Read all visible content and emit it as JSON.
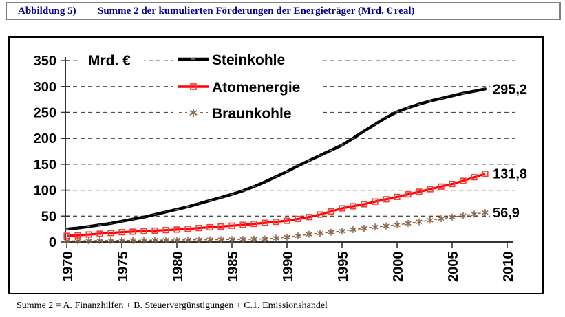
{
  "header": {
    "label": "Abbildung 5)",
    "title": "Summe 2 der kumulierten Förderungen der Energieträger (Mrd. € real)"
  },
  "footnote": {
    "text": "Summe 2 = A. Finanzhilfen + B. Steuervergünstigungen + C.1. Emissionshandel"
  },
  "chart_data": {
    "type": "line",
    "title": "Summe 2 der kumulierten Förderungen der Energieträger (Mrd. € real)",
    "unit_label": "Mrd. €",
    "ylim": [
      0,
      350
    ],
    "ytick_step": 50,
    "yticks": [
      0,
      50,
      100,
      150,
      200,
      250,
      300,
      350
    ],
    "xticks": [
      1970,
      1975,
      1980,
      1985,
      1990,
      1995,
      2000,
      2005,
      2010
    ],
    "grid": "horizontal-dashed",
    "legend_position": "top-left-inside",
    "x": [
      1970,
      1971,
      1972,
      1973,
      1974,
      1975,
      1976,
      1977,
      1978,
      1979,
      1980,
      1981,
      1982,
      1983,
      1984,
      1985,
      1986,
      1987,
      1988,
      1989,
      1990,
      1991,
      1992,
      1993,
      1994,
      1995,
      1996,
      1997,
      1998,
      1999,
      2000,
      2001,
      2002,
      2003,
      2004,
      2005,
      2006,
      2007,
      2008
    ],
    "series": [
      {
        "name": "Steinkohle",
        "color": "#000000",
        "marker": "dash",
        "end_label": "295,2",
        "end_value": 295.2,
        "values": [
          25,
          27,
          30,
          33,
          36,
          40,
          44,
          48,
          53,
          58,
          63,
          68,
          74,
          80,
          86,
          92,
          99,
          107,
          116,
          126,
          136,
          147,
          157,
          167,
          177,
          187,
          200,
          214,
          227,
          240,
          251,
          259,
          266,
          272,
          277,
          282,
          287,
          291,
          295.2
        ]
      },
      {
        "name": "Atomenergie",
        "color": "#FF0000",
        "marker": "square",
        "marker_color": "#FF3838",
        "end_label": "131,8",
        "end_value": 131.8,
        "values": [
          12,
          13,
          14.5,
          16,
          17.5,
          19,
          20,
          21,
          22,
          23,
          24,
          25.5,
          27,
          28.5,
          30,
          31.5,
          33,
          35,
          37,
          39,
          41,
          44.5,
          48,
          53,
          59,
          65,
          69,
          73,
          78,
          82.5,
          87,
          92,
          97,
          102,
          107,
          112,
          118,
          125,
          131.8
        ]
      },
      {
        "name": "Braunkohle",
        "color": "#8B6347",
        "marker": "asterisk",
        "end_label": "56,9",
        "end_value": 56.9,
        "values": [
          2,
          2.2,
          2.4,
          2.6,
          2.8,
          3,
          3.2,
          3.4,
          3.6,
          3.8,
          4,
          4.2,
          4.4,
          4.6,
          4.8,
          5,
          5.3,
          5.6,
          6,
          7.5,
          9.5,
          12,
          15,
          17,
          19,
          21,
          24,
          26.5,
          29,
          31,
          33,
          36,
          39,
          42,
          45,
          48,
          51,
          54,
          56.9
        ]
      }
    ],
    "colors": {
      "grid": "#4d4d4d",
      "axis": "#333333",
      "header_text": "#00008B",
      "header_border": "#808080"
    }
  }
}
